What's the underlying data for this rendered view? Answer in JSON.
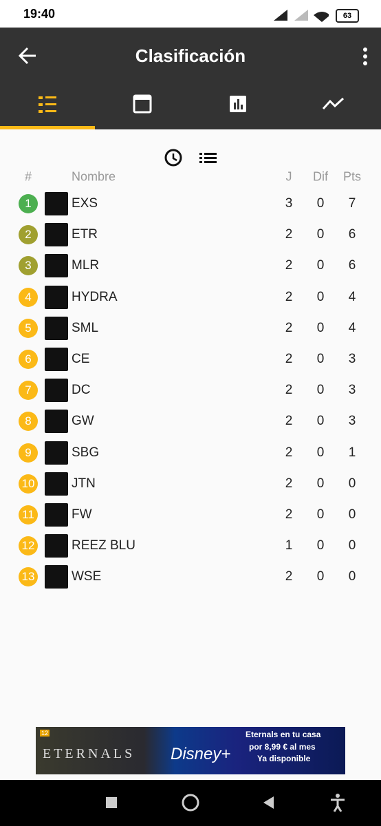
{
  "status_bar": {
    "time": "19:40",
    "battery": "63"
  },
  "app_bar": {
    "title": "Clasificación"
  },
  "table": {
    "headers": [
      "#",
      "Nombre",
      "J",
      "Dif",
      "Pts"
    ],
    "rows": [
      {
        "rank": "1",
        "name": "EXS",
        "played": "3",
        "diff": "0",
        "points": "7",
        "badge_color": "#4caf50"
      },
      {
        "rank": "2",
        "name": "ETR",
        "played": "2",
        "diff": "0",
        "points": "6",
        "badge_color": "#a0a030"
      },
      {
        "rank": "3",
        "name": "MLR",
        "played": "2",
        "diff": "0",
        "points": "6",
        "badge_color": "#a0a030"
      },
      {
        "rank": "4",
        "name": "HYDRA",
        "played": "2",
        "diff": "0",
        "points": "4",
        "badge_color": "#fbb917"
      },
      {
        "rank": "5",
        "name": "SML",
        "played": "2",
        "diff": "0",
        "points": "4",
        "badge_color": "#fbb917"
      },
      {
        "rank": "6",
        "name": "CE",
        "played": "2",
        "diff": "0",
        "points": "3",
        "badge_color": "#fbb917"
      },
      {
        "rank": "7",
        "name": "DC",
        "played": "2",
        "diff": "0",
        "points": "3",
        "badge_color": "#fbb917"
      },
      {
        "rank": "8",
        "name": "GW",
        "played": "2",
        "diff": "0",
        "points": "3",
        "badge_color": "#fbb917"
      },
      {
        "rank": "9",
        "name": "SBG",
        "played": "2",
        "diff": "0",
        "points": "1",
        "badge_color": "#fbb917"
      },
      {
        "rank": "10",
        "name": "JTN",
        "played": "2",
        "diff": "0",
        "points": "0",
        "badge_color": "#fbb917"
      },
      {
        "rank": "11",
        "name": "FW",
        "played": "2",
        "diff": "0",
        "points": "0",
        "badge_color": "#fbb917"
      },
      {
        "rank": "12",
        "name": "REEZ BLU",
        "played": "1",
        "diff": "0",
        "points": "0",
        "badge_color": "#fbb917"
      },
      {
        "rank": "13",
        "name": "WSE",
        "played": "2",
        "diff": "0",
        "points": "0",
        "badge_color": "#fbb917"
      }
    ]
  },
  "ad": {
    "rating": "12",
    "movie": "ETERNALS",
    "brand": "Disney+",
    "headline": "Eternals en tu casa",
    "price": "por 8,99 € al mes",
    "cta": "Ya disponible"
  }
}
